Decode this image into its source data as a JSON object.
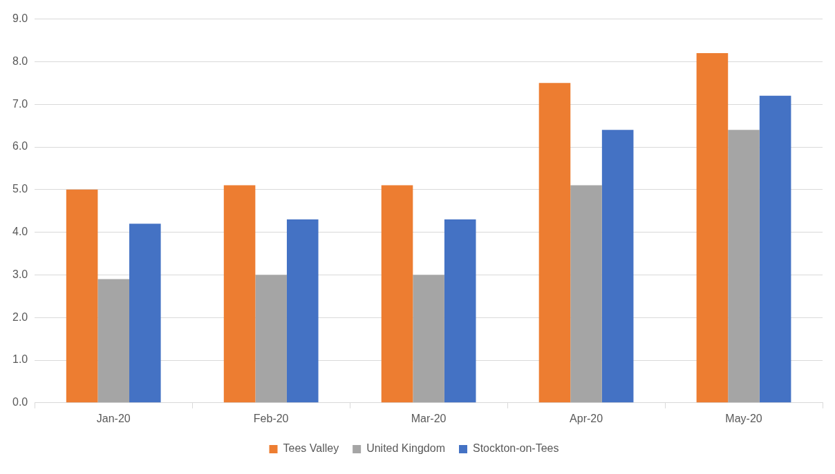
{
  "chart_data": {
    "type": "bar",
    "categories": [
      "Jan-20",
      "Feb-20",
      "Mar-20",
      "Apr-20",
      "May-20"
    ],
    "series": [
      {
        "name": "Tees Valley",
        "color": "#ed7d31",
        "values": [
          5.0,
          5.1,
          5.1,
          7.5,
          8.2
        ]
      },
      {
        "name": "United Kingdom",
        "color": "#a5a5a5",
        "values": [
          2.9,
          3.0,
          3.0,
          5.1,
          6.4
        ]
      },
      {
        "name": "Stockton-on-Tees",
        "color": "#4472c4",
        "values": [
          4.2,
          4.3,
          4.3,
          6.4,
          7.2
        ]
      }
    ],
    "ylim": [
      0,
      9
    ],
    "yticks": [
      {
        "value": 0,
        "label": "0.0"
      },
      {
        "value": 1,
        "label": "1.0"
      },
      {
        "value": 2,
        "label": "2.0"
      },
      {
        "value": 3,
        "label": "3.0"
      },
      {
        "value": 4,
        "label": "4.0"
      },
      {
        "value": 5,
        "label": "5.0"
      },
      {
        "value": 6,
        "label": "6.0"
      },
      {
        "value": 7,
        "label": "7.0"
      },
      {
        "value": 8,
        "label": "8.0"
      },
      {
        "value": 9,
        "label": "9.0"
      }
    ],
    "grid": "y",
    "legend": "bottom"
  }
}
